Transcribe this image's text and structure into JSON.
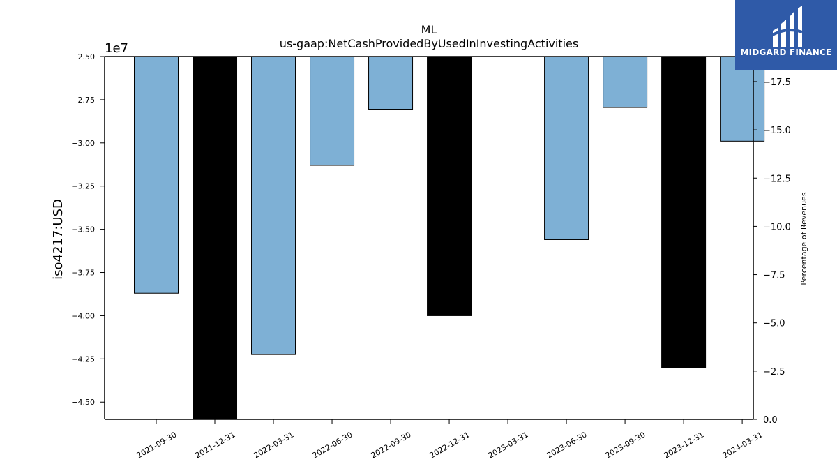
{
  "chart_data": {
    "type": "bar",
    "title": "ML",
    "subtitle": "us-gaap:NetCashProvidedByUsedInInvestingActivities",
    "ylabel": "iso4217:USD",
    "y2label": "Percentage of Revenues",
    "offset_text": "1e7",
    "categories": [
      "2021-09-30",
      "2021-12-31",
      "2022-03-31",
      "2022-06-30",
      "2022-09-30",
      "2022-12-31",
      "2023-03-31",
      "2023-06-30",
      "2023-09-30",
      "2023-12-31",
      "2024-03-31"
    ],
    "values": [
      -38700000,
      -46000000,
      -42250000,
      -31300000,
      -28050000,
      -40000000,
      null,
      -35600000,
      -27950000,
      -43000000,
      -29900000
    ],
    "bar_colors": [
      "#7eb0d5",
      "#000000",
      "#7eb0d5",
      "#7eb0d5",
      "#7eb0d5",
      "#000000",
      null,
      "#7eb0d5",
      "#7eb0d5",
      "#000000",
      "#7eb0d5"
    ],
    "ylim": [
      -46000000,
      -25000000
    ],
    "yticks": [
      -25000000,
      -27500000,
      -30000000,
      -32500000,
      -35000000,
      -37500000,
      -40000000,
      -42500000,
      -45000000
    ],
    "ytick_labels": [
      "−2.50",
      "−2.75",
      "−3.00",
      "−3.25",
      "−3.50",
      "−3.75",
      "−4.00",
      "−4.25",
      "−4.50"
    ],
    "y2lim": [
      0,
      -18.8
    ],
    "y2ticks": [
      -17.5,
      -15.0,
      -12.5,
      -10.0,
      -7.5,
      -5.0,
      -2.5,
      0.0
    ],
    "y2tick_labels": [
      "−17.5",
      "−15.0",
      "−12.5",
      "−10.0",
      "−7.5",
      "−5.0",
      "−2.5",
      "0.0"
    ],
    "grid": false
  },
  "logo": {
    "text": "MIDGARD FINANCE",
    "icon": "midgard-logo-icon"
  }
}
